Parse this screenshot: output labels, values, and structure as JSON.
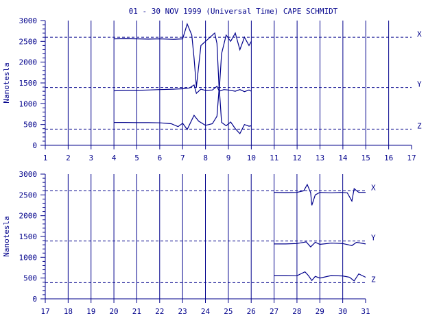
{
  "colors": {
    "line": "#00008b",
    "background": "#ffffff"
  },
  "chart_data": {
    "type": "line",
    "title": "01 - 30 NOV 1999 (Universal Time) CAPE SCHMIDT",
    "ylabel": "Nanotesla",
    "y_ticks": [
      "0",
      "500",
      "1000",
      "1500",
      "2000",
      "2500",
      "3000"
    ],
    "ylim": [
      0,
      3000
    ],
    "grid": "vertical lines at each day, dashed reference lines at component baselines",
    "components": [
      "X",
      "Y",
      "Z"
    ],
    "baselines": {
      "X": 2600,
      "Y": 1390,
      "Z": 390
    },
    "panels": [
      {
        "xlim": [
          1,
          17
        ],
        "x_tick_labels": [
          "1",
          "2",
          "3",
          "4",
          "5",
          "6",
          "7",
          "8",
          "9",
          "10",
          "11",
          "12",
          "13",
          "14",
          "15",
          "16",
          "17"
        ],
        "series": [
          {
            "name": "X",
            "x": [
              4.0,
              4.5,
              5.0,
              5.5,
              6.0,
              6.6,
              7.0,
              7.2,
              7.4,
              7.5,
              7.6,
              7.8,
              8.0,
              8.2,
              8.4,
              8.5,
              8.6,
              8.7,
              8.9,
              9.1,
              9.3,
              9.5,
              9.7,
              9.9,
              10.0
            ],
            "values": [
              2560,
              2565,
              2560,
              2555,
              2560,
              2550,
              2560,
              2920,
              2650,
              2100,
              1400,
              2400,
              2500,
              2600,
              2700,
              2450,
              1300,
              2200,
              2650,
              2500,
              2700,
              2300,
              2600,
              2400,
              2500
            ]
          },
          {
            "name": "Y",
            "x": [
              4.0,
              4.5,
              5.0,
              5.5,
              6.0,
              6.6,
              7.0,
              7.3,
              7.5,
              7.6,
              7.8,
              8.0,
              8.3,
              8.5,
              8.6,
              8.8,
              9.0,
              9.3,
              9.5,
              9.7,
              9.9,
              10.0
            ],
            "values": [
              1310,
              1320,
              1320,
              1330,
              1340,
              1350,
              1360,
              1380,
              1450,
              1250,
              1350,
              1320,
              1330,
              1420,
              1300,
              1340,
              1330,
              1300,
              1340,
              1290,
              1330,
              1300
            ]
          },
          {
            "name": "Z",
            "x": [
              4.0,
              4.5,
              5.0,
              5.5,
              6.0,
              6.5,
              6.8,
              7.0,
              7.2,
              7.5,
              7.7,
              8.0,
              8.3,
              8.5,
              8.6,
              8.7,
              8.9,
              9.1,
              9.3,
              9.5,
              9.7,
              9.9,
              10.0
            ],
            "values": [
              550,
              550,
              545,
              545,
              540,
              520,
              450,
              530,
              380,
              720,
              580,
              480,
              520,
              700,
              1400,
              550,
              470,
              560,
              400,
              280,
              500,
              460,
              470
            ]
          }
        ]
      },
      {
        "xlim": [
          17,
          31
        ],
        "x_tick_labels": [
          "17",
          "18",
          "19",
          "20",
          "21",
          "22",
          "23",
          "24",
          "25",
          "26",
          "27",
          "28",
          "29",
          "30",
          "31"
        ],
        "series": [
          {
            "name": "X",
            "x": [
              27.0,
              27.5,
              28.0,
              28.3,
              28.45,
              28.6,
              28.65,
              28.8,
              29.0,
              29.5,
              29.9,
              30.2,
              30.4,
              30.5,
              30.7,
              31.0
            ],
            "values": [
              2560,
              2555,
              2560,
              2600,
              2750,
              2550,
              2250,
              2500,
              2560,
              2550,
              2560,
              2550,
              2350,
              2650,
              2560,
              2560
            ]
          },
          {
            "name": "Y",
            "x": [
              27.0,
              27.5,
              28.0,
              28.4,
              28.6,
              28.8,
              29.0,
              29.5,
              30.0,
              30.4,
              30.6,
              31.0
            ],
            "values": [
              1320,
              1320,
              1330,
              1370,
              1250,
              1360,
              1310,
              1340,
              1330,
              1280,
              1360,
              1320
            ]
          },
          {
            "name": "Z",
            "x": [
              27.0,
              27.5,
              28.0,
              28.35,
              28.5,
              28.65,
              28.8,
              29.0,
              29.5,
              30.0,
              30.3,
              30.5,
              30.7,
              31.0
            ],
            "values": [
              560,
              560,
              555,
              650,
              560,
              440,
              540,
              500,
              560,
              550,
              520,
              430,
              600,
              520
            ]
          }
        ]
      }
    ]
  }
}
